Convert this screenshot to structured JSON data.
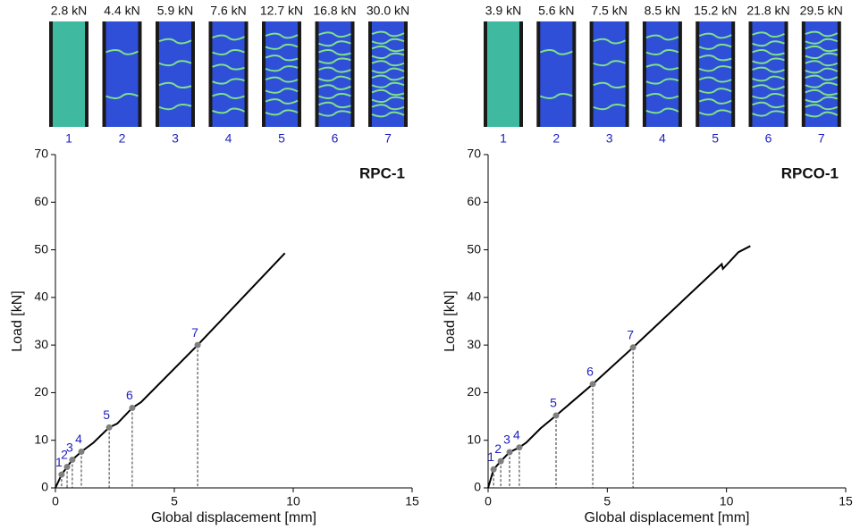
{
  "chart_data": [
    {
      "type": "line",
      "title": "RPC-1",
      "xlabel": "Global displacement [mm]",
      "ylabel": "Load [kN]",
      "xlim": [
        0,
        15
      ],
      "ylim": [
        0,
        70
      ],
      "xticks": [
        0,
        5,
        10,
        15
      ],
      "yticks": [
        0,
        10,
        20,
        30,
        40,
        50,
        60,
        70
      ],
      "color": "#000000",
      "point_color": "#7f7f7f",
      "label_color": "#1f1fbf",
      "x": [
        0,
        0.26,
        0.49,
        0.71,
        1.09,
        1.6,
        2.26,
        2.6,
        3.23,
        3.6,
        5.98,
        9.65
      ],
      "y": [
        0,
        2.8,
        4.4,
        5.9,
        7.6,
        9.5,
        12.7,
        13.5,
        16.8,
        18,
        30.0,
        49.3
      ],
      "points": {
        "labels": [
          1,
          2,
          3,
          4,
          5,
          6,
          7
        ],
        "x": [
          0.26,
          0.49,
          0.71,
          1.09,
          2.26,
          3.23,
          5.98
        ],
        "y": [
          2.8,
          4.4,
          5.9,
          7.6,
          12.7,
          16.8,
          30.0
        ]
      },
      "photo_labels": [
        "2.8 kN",
        "4.4 kN",
        "5.9 kN",
        "7.6 kN",
        "12.7 kN",
        "16.8 kN",
        "30.0 kN"
      ],
      "photo_numbers": [
        1,
        2,
        3,
        4,
        5,
        6,
        7
      ]
    },
    {
      "type": "line",
      "title": "RPCO-1",
      "xlabel": "Global displacement [mm]",
      "ylabel": "Load [kN]",
      "xlim": [
        0,
        15
      ],
      "ylim": [
        0,
        70
      ],
      "xticks": [
        0,
        5,
        10,
        15
      ],
      "yticks": [
        0,
        10,
        20,
        30,
        40,
        50,
        60,
        70
      ],
      "color": "#000000",
      "point_color": "#7f7f7f",
      "label_color": "#1f1fbf",
      "x": [
        0,
        0.23,
        0.53,
        0.9,
        1.31,
        1.6,
        2.2,
        2.85,
        4.39,
        6.08,
        9.8,
        9.85,
        10.5,
        11.0
      ],
      "y": [
        0,
        3.9,
        5.6,
        7.5,
        8.5,
        9.5,
        12.5,
        15.2,
        21.8,
        29.5,
        47,
        46,
        49.5,
        50.8
      ],
      "points": {
        "labels": [
          1,
          2,
          3,
          4,
          5,
          6,
          7
        ],
        "x": [
          0.23,
          0.53,
          0.9,
          1.31,
          2.85,
          4.39,
          6.08
        ],
        "y": [
          3.9,
          5.6,
          7.5,
          8.5,
          15.2,
          21.8,
          29.5
        ]
      },
      "photo_labels": [
        "3.9 kN",
        "5.6 kN",
        "7.5 kN",
        "8.5 kN",
        "15.2 kN",
        "21.8 kN",
        "29.5 kN"
      ],
      "photo_numbers": [
        1,
        2,
        3,
        4,
        5,
        6,
        7
      ]
    }
  ]
}
